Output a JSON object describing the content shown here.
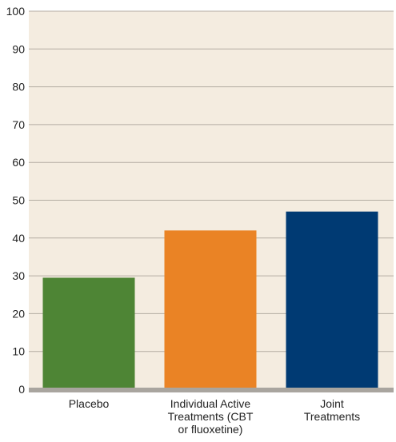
{
  "chart_data": {
    "type": "bar",
    "title": "",
    "xlabel": "",
    "ylabel": "",
    "ylim": [
      0,
      100
    ],
    "yticks": [
      0,
      10,
      20,
      30,
      40,
      50,
      60,
      70,
      80,
      90,
      100
    ],
    "grid": true,
    "categories": [
      [
        "Placebo"
      ],
      [
        "Individual Active",
        "Treatments (CBT",
        "or fluoxetine)"
      ],
      [
        "Joint",
        "Treatments"
      ]
    ],
    "values": [
      29.5,
      42,
      47
    ],
    "colors": [
      "#4e8535",
      "#ea8325",
      "#003a73"
    ]
  },
  "style": {
    "plot_background": "#f4ece0",
    "grid_color": "#b3aca3",
    "baseline_color": "#a9a59f"
  }
}
